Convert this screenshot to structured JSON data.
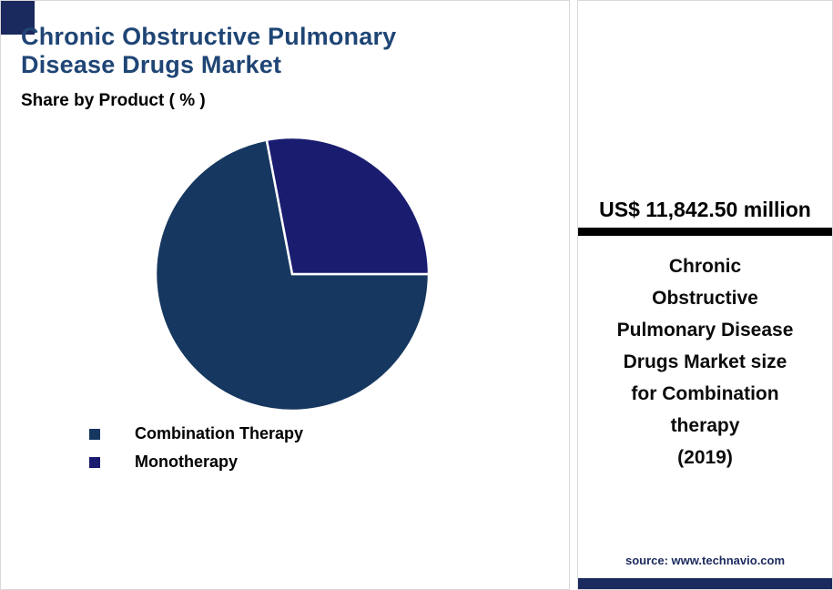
{
  "colors": {
    "accent_navy": "#1b2a5e",
    "title_blue": "#1f4575",
    "divider_black": "#000000",
    "panel_border": "#d9d9d9",
    "background": "#ffffff"
  },
  "chart_panel": {
    "title": "Chronic Obstructive Pulmonary Disease Drugs Market",
    "subtitle": "Share by Product ( % )"
  },
  "info_panel": {
    "value": "US$ 11,842.50 million",
    "caption_lines": [
      "Chronic",
      "Obstructive",
      "Pulmonary Disease",
      "Drugs Market size",
      "for Combination",
      "therapy",
      "(2019)"
    ],
    "source": "source: www.technavio.com"
  },
  "chart_data": {
    "type": "pie",
    "title": "Chronic Obstructive Pulmonary Disease Drugs Market",
    "subtitle": "Share by Product ( % )",
    "labels": [
      "Combination Therapy",
      "Monotherapy"
    ],
    "values": [
      72,
      28
    ],
    "colors": [
      "#16375f",
      "#1a1c70"
    ],
    "start_angle_deg": 90,
    "direction": "clockwise",
    "legend_position": "bottom-left",
    "annotation": "US$ 11,842.50 million — Chronic Obstructive Pulmonary Disease Drugs Market size for Combination therapy (2019)",
    "source": "source: www.technavio.com"
  }
}
